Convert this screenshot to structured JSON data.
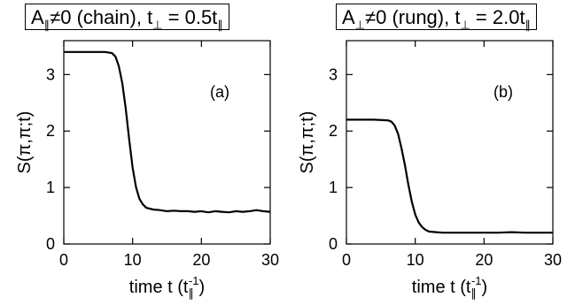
{
  "panels": [
    {
      "title_parts": [
        "A",
        "∥",
        "≠0 (chain), t",
        "⊥",
        " = 0.5t",
        "∥"
      ],
      "tag": "(a)"
    },
    {
      "title_parts": [
        "A",
        "⊥",
        "≠0 (rung), t",
        "⊥",
        " = 2.0t",
        "∥"
      ],
      "tag": "(b)"
    }
  ],
  "chart_data": [
    {
      "type": "line",
      "title": "A∥≠0 (chain), t⊥ = 0.5t∥",
      "annotation": "(a)",
      "xlabel": "time t (t∥⁻¹)",
      "ylabel": "S(π,π;t)",
      "xlim": [
        0,
        30
      ],
      "ylim": [
        0,
        3.6
      ],
      "xticks": [
        0,
        10,
        20,
        30
      ],
      "yticks": [
        0,
        1,
        2,
        3
      ],
      "grid": false,
      "series": [
        {
          "x": [
            0,
            2,
            4,
            6,
            7,
            7.5,
            8,
            8.5,
            9,
            9.5,
            10,
            10.5,
            11,
            11.5,
            12,
            13,
            14,
            15,
            16,
            17,
            18,
            19,
            20,
            21,
            22,
            23,
            24,
            25,
            26,
            27,
            28,
            29,
            30
          ],
          "y": [
            3.4,
            3.4,
            3.4,
            3.4,
            3.38,
            3.32,
            3.15,
            2.85,
            2.4,
            1.85,
            1.35,
            1.0,
            0.8,
            0.7,
            0.64,
            0.61,
            0.6,
            0.58,
            0.59,
            0.58,
            0.58,
            0.57,
            0.58,
            0.56,
            0.58,
            0.57,
            0.56,
            0.58,
            0.57,
            0.58,
            0.6,
            0.58,
            0.57
          ]
        }
      ]
    },
    {
      "type": "line",
      "title": "A⊥≠0 (rung), t⊥ = 2.0t∥",
      "annotation": "(b)",
      "xlabel": "time t (t∥⁻¹)",
      "ylabel": "S(π,π;t)",
      "xlim": [
        0,
        30
      ],
      "ylim": [
        0,
        3.6
      ],
      "xticks": [
        0,
        10,
        20,
        30
      ],
      "yticks": [
        0,
        1,
        2,
        3
      ],
      "grid": false,
      "series": [
        {
          "x": [
            0,
            2,
            4,
            6,
            6.5,
            7,
            7.5,
            8,
            8.5,
            9,
            9.5,
            10,
            10.5,
            11,
            11.5,
            12,
            13,
            14,
            15,
            16,
            18,
            20,
            22,
            24,
            26,
            28,
            30
          ],
          "y": [
            2.2,
            2.2,
            2.2,
            2.19,
            2.17,
            2.1,
            1.95,
            1.7,
            1.4,
            1.05,
            0.75,
            0.52,
            0.38,
            0.3,
            0.25,
            0.22,
            0.21,
            0.2,
            0.2,
            0.2,
            0.2,
            0.2,
            0.2,
            0.21,
            0.2,
            0.2,
            0.2
          ]
        }
      ]
    }
  ]
}
